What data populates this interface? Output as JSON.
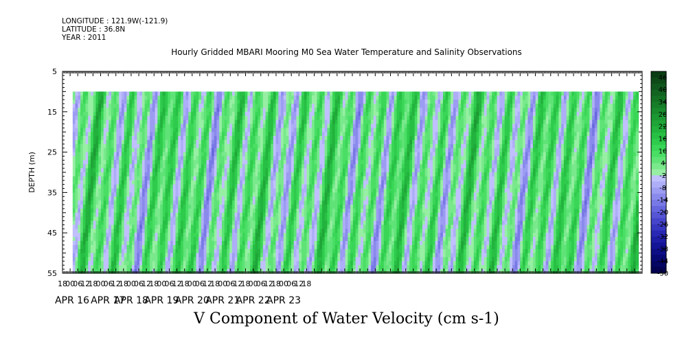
{
  "header": {
    "longitude": "LONGITUDE : 121.9W(-121.9)",
    "latitude": "LATITUDE : 36.8N",
    "year": "YEAR : 2011"
  },
  "chart_data": {
    "type": "heatmap",
    "title": "Hourly Gridded MBARI Mooring M0 Sea Water Temperature and Salinity Observations",
    "subtitle": "V Component of Water Velocity (cm s-1)",
    "ylabel": "DEPTH (m)",
    "ylim": [
      55,
      5
    ],
    "yticks": [
      5,
      15,
      25,
      35,
      45,
      55
    ],
    "xrange_hours": [
      -6,
      450
    ],
    "xhour_ticks": [
      "18",
      "00",
      "06",
      "12",
      "18",
      "00",
      "06",
      "12",
      "18",
      "00",
      "06",
      "12",
      "18",
      "00",
      "06",
      "12",
      "18",
      "00",
      "06",
      "12",
      "18",
      "00",
      "06",
      "12",
      "18",
      "00",
      "06",
      "12",
      "18",
      "00",
      "06",
      "12",
      "18"
    ],
    "date_labels": [
      "APR 16",
      "APR 17",
      "APR 18",
      "APR 19",
      "APR 20",
      "APR 21",
      "APR 22",
      "APR 23"
    ],
    "data_depth_top": 10,
    "data_start_hours": 2,
    "colorbar": {
      "labels": [
        "46",
        "40",
        "34",
        "28",
        "22",
        "16",
        "10",
        "4",
        "-2",
        "-8",
        "-14",
        "-20",
        "-26",
        "-32",
        "-38",
        "-44",
        "-50"
      ],
      "levels": [
        49,
        46,
        43,
        40,
        37,
        34,
        31,
        28,
        25,
        22,
        19,
        16,
        13,
        10,
        7,
        4,
        1,
        -2,
        -5,
        -8,
        -11,
        -14,
        -17,
        -20,
        -23,
        -26,
        -29,
        -32,
        -35,
        -38,
        -41,
        -44,
        -47,
        -50
      ],
      "colors": [
        "#0a3d14",
        "#0d4a18",
        "#0f571c",
        "#126420",
        "#147124",
        "#167e28",
        "#198b2d",
        "#1c9832",
        "#1fa537",
        "#22b23d",
        "#27bf44",
        "#2ecb4c",
        "#3ad657",
        "#4ade65",
        "#5fe377",
        "#79e98c",
        "#97efa3",
        "#c0c0ff",
        "#aeaef8",
        "#9c9cf2",
        "#8a8aec",
        "#7878e6",
        "#6666de",
        "#5555d5",
        "#4545cb",
        "#3636c0",
        "#2828b4",
        "#1d1da6",
        "#141497",
        "#0d0d86",
        "#080874",
        "#050562",
        "#030350"
      ]
    },
    "series_note": "velocity field roughly between -15 and 20 cm s-1"
  }
}
